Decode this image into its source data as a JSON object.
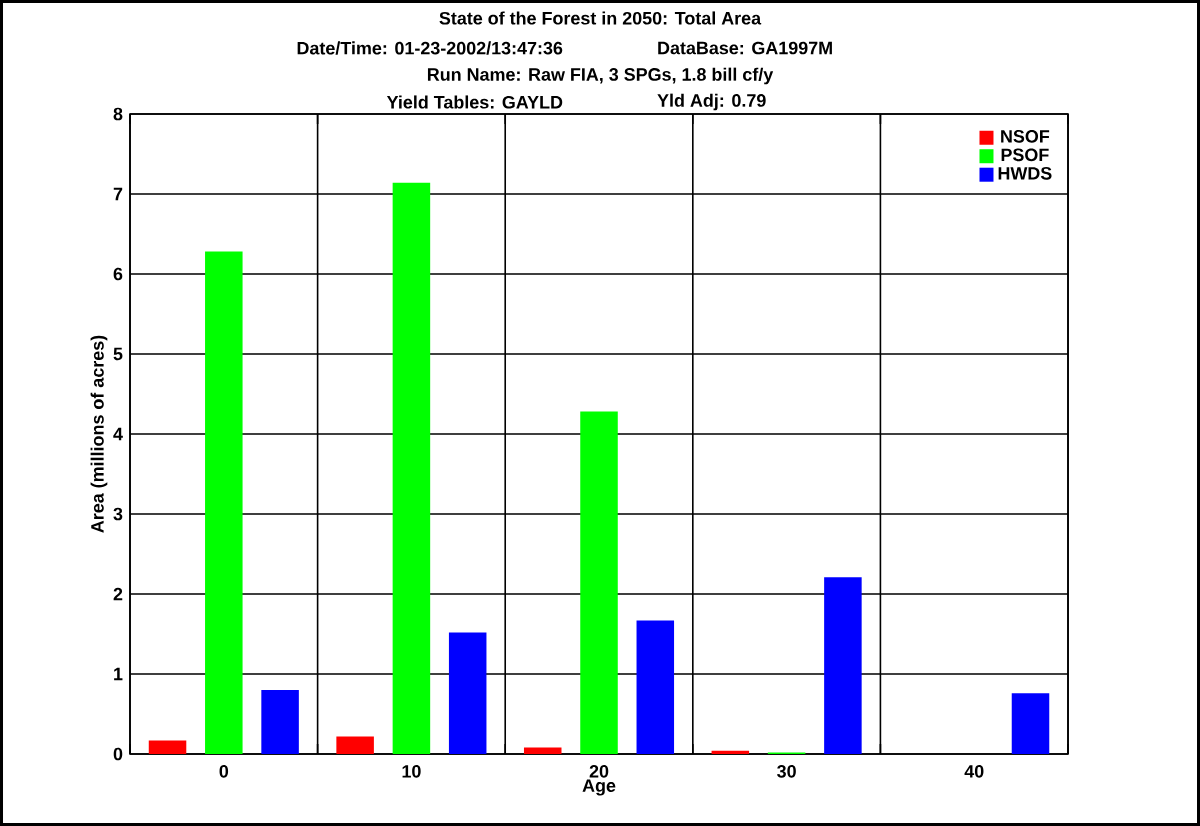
{
  "chart_data": {
    "type": "bar",
    "title": "State of the Forest in 2050: Total Area",
    "annotations": [
      "Date/Time: 01-23-2002/13:47:36",
      "DataBase: GA1997M",
      "Run Name: Raw FIA, 3 SPGs, 1.8 bill cf/y",
      "Yield Tables: GAYLD",
      "Yld Adj: 0.79"
    ],
    "xlabel": "Age",
    "ylabel": "Area (millions of acres)",
    "categories": [
      "0",
      "10",
      "20",
      "30",
      "40"
    ],
    "series": [
      {
        "name": "NSOF",
        "color": "#ff0000",
        "values": [
          0.17,
          0.22,
          0.08,
          0.04,
          0
        ]
      },
      {
        "name": "PSOF",
        "color": "#00ff00",
        "values": [
          6.28,
          7.14,
          4.28,
          0.02,
          0
        ]
      },
      {
        "name": "HWDS",
        "color": "#0000ff",
        "values": [
          0.8,
          1.52,
          1.67,
          2.21,
          0.76
        ]
      }
    ],
    "ylim": [
      0,
      8
    ],
    "yticks": [
      0,
      1,
      2,
      3,
      4,
      5,
      6,
      7,
      8
    ],
    "grid": true,
    "legend": "top right"
  }
}
